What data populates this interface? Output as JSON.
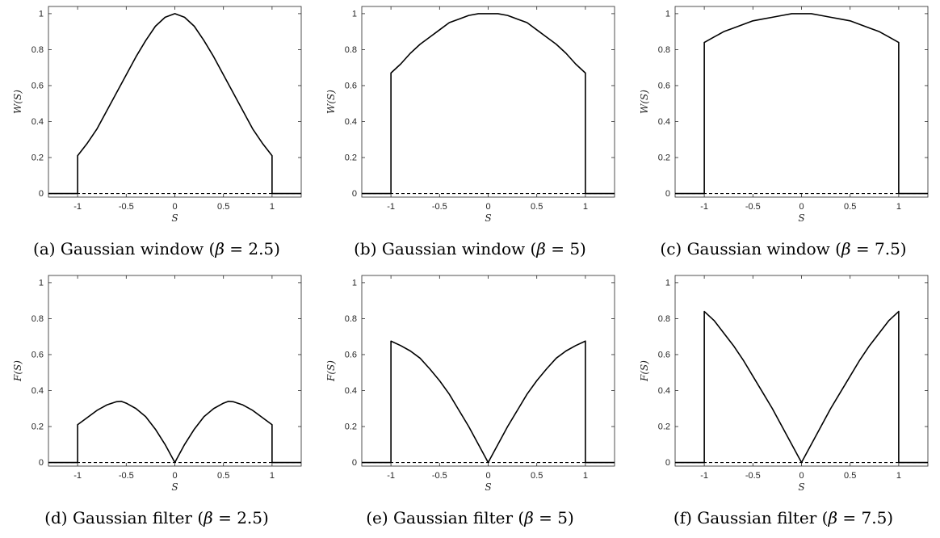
{
  "figure": {
    "panels": [
      {
        "caption": {
          "letter": "(a)",
          "text": "Gaussian window (",
          "greek": "β",
          "rest": " = 2.5)"
        }
      },
      {
        "caption": {
          "letter": "(b)",
          "text": "Gaussian window (",
          "greek": "β",
          "rest": " = 5)"
        }
      },
      {
        "caption": {
          "letter": "(c)",
          "text": "Gaussian window (",
          "greek": "β",
          "rest": " = 7.5)"
        }
      },
      {
        "caption": {
          "letter": "(d)",
          "text": "Gaussian filter (",
          "greek": "β",
          "rest": " = 2.5)"
        }
      },
      {
        "caption": {
          "letter": "(e)",
          "text": "Gaussian filter (",
          "greek": "β",
          "rest": " = 5)"
        }
      },
      {
        "caption": {
          "letter": "(f)",
          "text": "Gaussian filter (",
          "greek": "β",
          "rest": " = 7.5)"
        }
      }
    ]
  },
  "chart_data": [
    {
      "type": "line",
      "xlabel": "S",
      "ylabel": "W(S)",
      "xlim": [
        -1.3,
        1.3
      ],
      "ylim": [
        -0.02,
        1.04
      ],
      "xticks": [
        -1,
        -0.5,
        0,
        0.5,
        1
      ],
      "xtick_labels": [
        "-1",
        "-0.5",
        "0",
        "0.5",
        "1"
      ],
      "yticks": [
        0,
        0.2,
        0.4,
        0.6,
        0.8,
        1
      ],
      "ytick_labels": [
        "0",
        "0.2",
        "0.4",
        "0.6",
        "0.8",
        "1"
      ],
      "grid": false,
      "series": [
        {
          "style": "solid",
          "x": [
            -1.3,
            -1,
            -1,
            -0.9,
            -0.8,
            -0.7,
            -0.6,
            -0.5,
            -0.4,
            -0.3,
            -0.2,
            -0.1,
            0,
            0.1,
            0.2,
            0.3,
            0.4,
            0.5,
            0.6,
            0.7,
            0.8,
            0.9,
            1,
            1,
            1.3
          ],
          "y": [
            0,
            0,
            0.21,
            0.28,
            0.36,
            0.46,
            0.56,
            0.66,
            0.76,
            0.85,
            0.93,
            0.98,
            1,
            0.98,
            0.93,
            0.85,
            0.76,
            0.66,
            0.56,
            0.46,
            0.36,
            0.28,
            0.21,
            0,
            0
          ]
        },
        {
          "style": "dashed",
          "x": [
            -1.3,
            1.3
          ],
          "y": [
            0,
            0
          ]
        }
      ]
    },
    {
      "type": "line",
      "xlabel": "S",
      "ylabel": "W(S)",
      "xlim": [
        -1.3,
        1.3
      ],
      "ylim": [
        -0.02,
        1.04
      ],
      "xticks": [
        -1,
        -0.5,
        0,
        0.5,
        1
      ],
      "xtick_labels": [
        "-1",
        "-0.5",
        "0",
        "0.5",
        "1"
      ],
      "yticks": [
        0,
        0.2,
        0.4,
        0.6,
        0.8,
        1
      ],
      "ytick_labels": [
        "0",
        "0.2",
        "0.4",
        "0.6",
        "0.8",
        "1"
      ],
      "grid": false,
      "series": [
        {
          "style": "solid",
          "x": [
            -1.3,
            -1,
            -1,
            -0.9,
            -0.8,
            -0.7,
            -0.6,
            -0.5,
            -0.4,
            -0.3,
            -0.2,
            -0.1,
            0,
            0.1,
            0.2,
            0.3,
            0.4,
            0.5,
            0.6,
            0.7,
            0.8,
            0.9,
            1,
            1,
            1.3
          ],
          "y": [
            0,
            0,
            0.67,
            0.72,
            0.78,
            0.83,
            0.87,
            0.91,
            0.95,
            0.97,
            0.99,
            1,
            1,
            1,
            0.99,
            0.97,
            0.95,
            0.91,
            0.87,
            0.83,
            0.78,
            0.72,
            0.67,
            0,
            0
          ]
        },
        {
          "style": "dashed",
          "x": [
            -1.3,
            1.3
          ],
          "y": [
            0,
            0
          ]
        }
      ]
    },
    {
      "type": "line",
      "xlabel": "S",
      "ylabel": "W(S)",
      "xlim": [
        -1.3,
        1.3
      ],
      "ylim": [
        -0.02,
        1.04
      ],
      "xticks": [
        -1,
        -0.5,
        0,
        0.5,
        1
      ],
      "xtick_labels": [
        "-1",
        "-0.5",
        "0",
        "0.5",
        "1"
      ],
      "yticks": [
        0,
        0.2,
        0.4,
        0.6,
        0.8,
        1
      ],
      "ytick_labels": [
        "0",
        "0.2",
        "0.4",
        "0.6",
        "0.8",
        "1"
      ],
      "grid": false,
      "series": [
        {
          "style": "solid",
          "x": [
            -1.3,
            -1,
            -1,
            -0.9,
            -0.8,
            -0.7,
            -0.6,
            -0.5,
            -0.4,
            -0.3,
            -0.2,
            -0.1,
            0,
            0.1,
            0.2,
            0.3,
            0.4,
            0.5,
            0.6,
            0.7,
            0.8,
            0.9,
            1,
            1,
            1.3
          ],
          "y": [
            0,
            0,
            0.84,
            0.87,
            0.9,
            0.92,
            0.94,
            0.96,
            0.97,
            0.98,
            0.99,
            1,
            1,
            1,
            0.99,
            0.98,
            0.97,
            0.96,
            0.94,
            0.92,
            0.9,
            0.87,
            0.84,
            0,
            0
          ]
        },
        {
          "style": "dashed",
          "x": [
            -1.3,
            1.3
          ],
          "y": [
            0,
            0
          ]
        }
      ]
    },
    {
      "type": "line",
      "xlabel": "S",
      "ylabel": "F(S)",
      "xlim": [
        -1.3,
        1.3
      ],
      "ylim": [
        -0.02,
        1.04
      ],
      "xticks": [
        -1,
        -0.5,
        0,
        0.5,
        1
      ],
      "xtick_labels": [
        "-1",
        "-0.5",
        "0",
        "0.5",
        "1"
      ],
      "yticks": [
        0,
        0.2,
        0.4,
        0.6,
        0.8,
        1
      ],
      "ytick_labels": [
        "0",
        "0.2",
        "0.4",
        "0.6",
        "0.8",
        "1"
      ],
      "grid": false,
      "series": [
        {
          "style": "solid",
          "x": [
            -1.3,
            -1,
            -1,
            -0.9,
            -0.8,
            -0.7,
            -0.6,
            -0.55,
            -0.5,
            -0.4,
            -0.3,
            -0.2,
            -0.1,
            0,
            0.1,
            0.2,
            0.3,
            0.4,
            0.5,
            0.55,
            0.6,
            0.7,
            0.8,
            0.9,
            1,
            1,
            1.3
          ],
          "y": [
            0,
            0,
            0.21,
            0.25,
            0.29,
            0.32,
            0.338,
            0.34,
            0.33,
            0.3,
            0.255,
            0.185,
            0.1,
            0,
            0.1,
            0.185,
            0.255,
            0.3,
            0.33,
            0.34,
            0.338,
            0.32,
            0.29,
            0.25,
            0.21,
            0,
            0
          ]
        },
        {
          "style": "dashed",
          "x": [
            -1.3,
            1.3
          ],
          "y": [
            0,
            0
          ]
        }
      ]
    },
    {
      "type": "line",
      "xlabel": "S",
      "ylabel": "F(S)",
      "xlim": [
        -1.3,
        1.3
      ],
      "ylim": [
        -0.02,
        1.04
      ],
      "xticks": [
        -1,
        -0.5,
        0,
        0.5,
        1
      ],
      "xtick_labels": [
        "-1",
        "-0.5",
        "0",
        "0.5",
        "1"
      ],
      "yticks": [
        0,
        0.2,
        0.4,
        0.6,
        0.8,
        1
      ],
      "ytick_labels": [
        "0",
        "0.2",
        "0.4",
        "0.6",
        "0.8",
        "1"
      ],
      "grid": false,
      "series": [
        {
          "style": "solid",
          "x": [
            -1.3,
            -1,
            -1,
            -0.9,
            -0.8,
            -0.7,
            -0.6,
            -0.5,
            -0.4,
            -0.3,
            -0.2,
            -0.1,
            0,
            0.1,
            0.2,
            0.3,
            0.4,
            0.5,
            0.6,
            0.7,
            0.8,
            0.9,
            1,
            1,
            1.3
          ],
          "y": [
            0,
            0,
            0.675,
            0.65,
            0.62,
            0.58,
            0.52,
            0.455,
            0.38,
            0.29,
            0.2,
            0.1,
            0,
            0.1,
            0.2,
            0.29,
            0.38,
            0.455,
            0.52,
            0.58,
            0.62,
            0.65,
            0.675,
            0,
            0
          ]
        },
        {
          "style": "dashed",
          "x": [
            -1.3,
            1.3
          ],
          "y": [
            0,
            0
          ]
        }
      ]
    },
    {
      "type": "line",
      "xlabel": "S",
      "ylabel": "F(S)",
      "xlim": [
        -1.3,
        1.3
      ],
      "ylim": [
        -0.02,
        1.04
      ],
      "xticks": [
        -1,
        -0.5,
        0,
        0.5,
        1
      ],
      "xtick_labels": [
        "-1",
        "-0.5",
        "0",
        "0.5",
        "1"
      ],
      "yticks": [
        0,
        0.2,
        0.4,
        0.6,
        0.8,
        1
      ],
      "ytick_labels": [
        "0",
        "0.2",
        "0.4",
        "0.6",
        "0.8",
        "1"
      ],
      "grid": false,
      "series": [
        {
          "style": "solid",
          "x": [
            -1.3,
            -1,
            -1,
            -0.9,
            -0.8,
            -0.7,
            -0.6,
            -0.5,
            -0.4,
            -0.3,
            -0.2,
            -0.1,
            0,
            0.1,
            0.2,
            0.3,
            0.4,
            0.5,
            0.6,
            0.7,
            0.8,
            0.9,
            1,
            1,
            1.3
          ],
          "y": [
            0,
            0,
            0.84,
            0.79,
            0.72,
            0.65,
            0.57,
            0.48,
            0.39,
            0.3,
            0.2,
            0.1,
            0,
            0.1,
            0.2,
            0.3,
            0.39,
            0.48,
            0.57,
            0.65,
            0.72,
            0.79,
            0.84,
            0,
            0
          ]
        },
        {
          "style": "dashed",
          "x": [
            -1.3,
            1.3
          ],
          "y": [
            0,
            0
          ]
        }
      ]
    }
  ]
}
